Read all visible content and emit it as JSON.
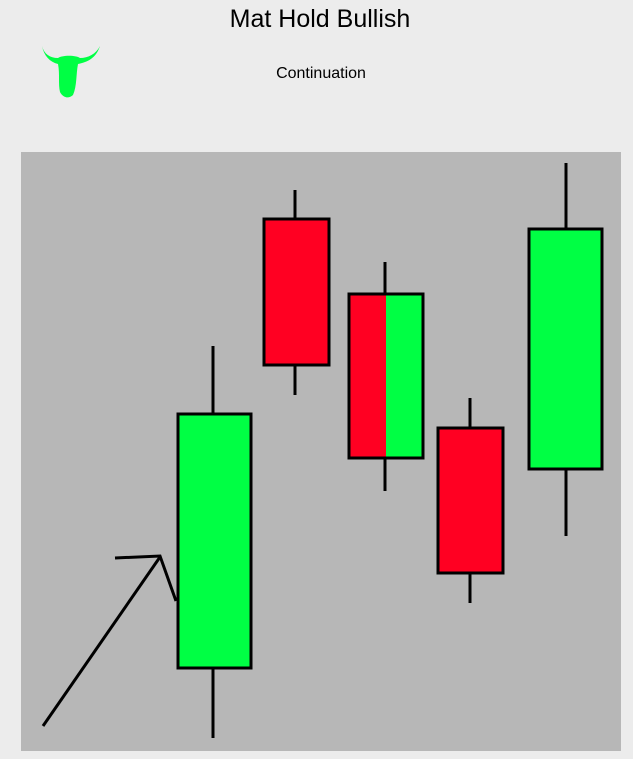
{
  "header": {
    "title": "Mat Hold Bullish",
    "subtitle": "Continuation"
  }
}
